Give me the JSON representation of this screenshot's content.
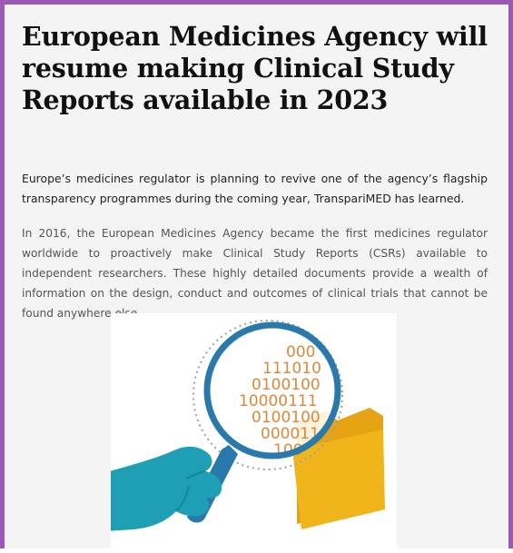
{
  "article": {
    "headline": "European Medicines Agency will resume making Clinical Study Reports available in 2023",
    "lede": "Europe’s medicines regulator is planning to revive one of the agency’s flagship transparency programmes during the coming year, TranspariMED has learned.",
    "paragraph": "In 2016, the European Medicines Agency became the first medicines regulator worldwide to proactively make Clinical Study Reports (CSRs) available to independent researchers. These highly detailed documents provide a wealth of information on the design, conduct and outcomes of clinical trials that cannot be found anywhere else."
  },
  "illustration": {
    "binary_rows": [
      "000",
      "111010",
      "0100100",
      "10000111",
      "0100100",
      "000011",
      "100"
    ],
    "colors": {
      "frame": "#9b59b6",
      "lens_ring": "#2a79ad",
      "handle": "#2a79ad",
      "hand": "#1f9fb3",
      "folder": "#f1b51c",
      "digits": "#d98a3a"
    }
  }
}
